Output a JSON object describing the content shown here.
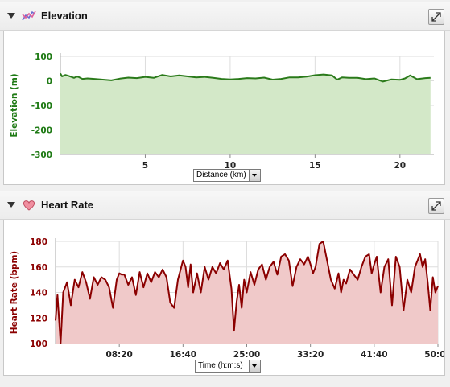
{
  "panels": {
    "elevation": {
      "title": "Elevation",
      "axis_select": "Distance (km)"
    },
    "heart_rate": {
      "title": "Heart Rate",
      "axis_select": "Time (h:m:s)"
    }
  },
  "colors": {
    "elevation_line": "#2a7a1a",
    "elevation_fill": "#d3e8c8",
    "elevation_axis_text": "#1e7a14",
    "heart_line": "#8b0000",
    "heart_fill": "#f0c9c9",
    "heart_axis_text": "#8b0000",
    "grid": "#dddddd"
  },
  "chart_data": [
    {
      "type": "area",
      "ylabel": "Elevation (m)",
      "xlim": [
        0,
        22
      ],
      "ylim": [
        -300,
        100
      ],
      "xticks": [
        "5",
        "10",
        "15",
        "20"
      ],
      "xtick_values": [
        5,
        10,
        15,
        20
      ],
      "yticks": [
        "100",
        "0",
        "-100",
        "-200",
        "-300"
      ],
      "ytick_values": [
        100,
        0,
        -100,
        -200,
        -300
      ],
      "grid": true,
      "x": [
        0.0,
        0.1,
        0.3,
        0.5,
        0.8,
        1.0,
        1.3,
        1.6,
        2.0,
        2.5,
        3.0,
        3.5,
        4.0,
        4.5,
        5.0,
        5.5,
        6.0,
        6.5,
        7.0,
        7.5,
        8.0,
        8.5,
        9.0,
        9.5,
        10.0,
        10.5,
        11.0,
        11.5,
        12.0,
        12.5,
        13.0,
        13.5,
        14.0,
        14.5,
        15.0,
        15.5,
        16.0,
        16.3,
        16.6,
        17.0,
        17.5,
        18.0,
        18.5,
        18.8,
        19.0,
        19.5,
        20.0,
        20.3,
        20.6,
        21.0,
        21.5,
        21.8
      ],
      "y": [
        30,
        18,
        24,
        20,
        12,
        18,
        8,
        10,
        8,
        5,
        2,
        9,
        13,
        11,
        16,
        12,
        24,
        18,
        22,
        18,
        14,
        16,
        12,
        8,
        6,
        8,
        11,
        10,
        13,
        5,
        8,
        14,
        14,
        17,
        23,
        26,
        22,
        5,
        14,
        12,
        12,
        7,
        10,
        2,
        -3,
        6,
        4,
        10,
        22,
        7,
        11,
        12
      ]
    },
    {
      "type": "area",
      "ylabel": "Heart Rate (bpm)",
      "xlim": [
        "00:00",
        "50:00"
      ],
      "ylim": [
        100,
        180
      ],
      "xticks": [
        "08:20",
        "16:40",
        "25:00",
        "33:20",
        "41:40",
        "50:00"
      ],
      "yticks": [
        "180",
        "160",
        "140",
        "120",
        "100"
      ],
      "ytick_values": [
        180,
        160,
        140,
        120,
        100
      ],
      "grid": true,
      "x": [
        "00:00",
        "00:15",
        "00:40",
        "01:00",
        "01:30",
        "02:00",
        "02:30",
        "03:00",
        "03:30",
        "04:00",
        "04:30",
        "05:00",
        "05:30",
        "06:00",
        "06:30",
        "07:00",
        "07:30",
        "08:00",
        "08:20",
        "08:40",
        "09:00",
        "09:30",
        "10:00",
        "10:30",
        "11:00",
        "11:30",
        "12:00",
        "12:30",
        "13:00",
        "13:30",
        "14:00",
        "14:30",
        "15:00",
        "15:30",
        "16:00",
        "16:40",
        "17:00",
        "17:20",
        "17:40",
        "18:00",
        "18:30",
        "19:00",
        "19:30",
        "20:00",
        "20:30",
        "21:00",
        "21:30",
        "22:00",
        "22:30",
        "23:00",
        "23:20",
        "23:40",
        "24:00",
        "24:20",
        "24:40",
        "25:00",
        "25:30",
        "26:00",
        "26:30",
        "27:00",
        "27:30",
        "28:00",
        "28:30",
        "29:00",
        "29:30",
        "30:00",
        "30:30",
        "31:00",
        "31:30",
        "32:00",
        "32:30",
        "33:00",
        "33:20",
        "33:40",
        "34:00",
        "34:30",
        "35:00",
        "35:30",
        "36:00",
        "36:30",
        "37:00",
        "37:20",
        "37:40",
        "38:00",
        "38:30",
        "39:00",
        "39:30",
        "40:00",
        "40:30",
        "41:00",
        "41:20",
        "41:40",
        "42:00",
        "42:30",
        "43:00",
        "43:30",
        "44:00",
        "44:30",
        "45:00",
        "45:30",
        "46:00",
        "46:30",
        "47:00",
        "47:20",
        "47:40",
        "48:00",
        "48:20",
        "48:40",
        "49:00",
        "49:20",
        "49:40",
        "50:00"
      ],
      "y": [
        118,
        138,
        100,
        140,
        148,
        130,
        150,
        144,
        156,
        148,
        135,
        152,
        146,
        152,
        150,
        144,
        128,
        150,
        155,
        154,
        154,
        146,
        152,
        138,
        156,
        144,
        155,
        148,
        156,
        152,
        158,
        152,
        132,
        128,
        150,
        165,
        160,
        144,
        162,
        140,
        155,
        140,
        160,
        150,
        160,
        155,
        163,
        158,
        165,
        143,
        110,
        132,
        146,
        128,
        150,
        140,
        156,
        146,
        158,
        162,
        150,
        160,
        164,
        154,
        168,
        170,
        165,
        145,
        160,
        166,
        162,
        168,
        162,
        155,
        160,
        178,
        180,
        165,
        150,
        143,
        155,
        140,
        150,
        147,
        158,
        154,
        150,
        160,
        168,
        170,
        155,
        162,
        168,
        140,
        160,
        166,
        130,
        168,
        160,
        126,
        150,
        140,
        160,
        165,
        170,
        160,
        166,
        148,
        126,
        152,
        140,
        145
      ]
    }
  ]
}
